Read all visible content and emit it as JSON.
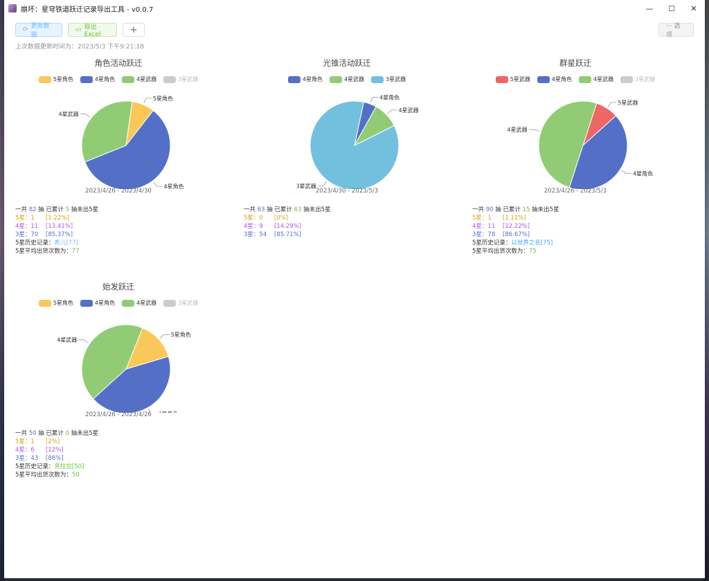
{
  "window": {
    "title": "崩坏：星穹铁道跃迁记录导出工具 - v0.0.7",
    "buttons": [
      "—",
      "☐",
      "✕"
    ]
  },
  "toolbar": {
    "refresh_label": "更新数据",
    "excel_label": "导出Excel",
    "plus_label": "+",
    "options_label": "··· 选项",
    "last_update": "上次数据更新时间为：2023/5/3 下午9:21:18"
  },
  "colors": {
    "star5_char": "#fac858",
    "star4_char": "#5470c6",
    "star4_weapon": "#91cc75",
    "star3_weapon": "#73c0de",
    "star5_weapon": "#ee6666",
    "disabled": "#cccccc"
  },
  "panels": [
    {
      "title": "角色活动跃迁",
      "legend": [
        {
          "label": "5星角色",
          "color": "#fac858",
          "off": false
        },
        {
          "label": "4星角色",
          "color": "#5470c6",
          "off": false
        },
        {
          "label": "4星武器",
          "color": "#91cc75",
          "off": false
        },
        {
          "label": "3星武器",
          "color": "#cccccc",
          "off": true
        }
      ],
      "slices": [
        {
          "label": "5星角色",
          "value": 1.22,
          "color": "#fac858"
        },
        {
          "label": "4星角色",
          "value": 8.54,
          "color": "#5470c6"
        },
        {
          "label": "4星武器",
          "value": 4.88,
          "color": "#91cc75"
        }
      ],
      "range_start": "2023/4/26",
      "range_sep": "-",
      "range_end": "2023/4/30",
      "summary": {
        "pre": "一共",
        "total": "82",
        "mid1": "抽 已累计",
        "pity": "5",
        "post": "抽未出5星"
      },
      "rows": [
        {
          "label": "5星：1",
          "pct": "[1.22%]"
        },
        {
          "label": "4星：11",
          "pct": "[13.41%]"
        },
        {
          "label": "3星：70",
          "pct": "[85.37%]"
        }
      ],
      "history_label": "5星历史记录：",
      "history_value": "希儿[77]",
      "avg_label": "5星平均出货次数为：",
      "avg_value": "77"
    },
    {
      "title": "光锥活动跃迁",
      "legend": [
        {
          "label": "4星角色",
          "color": "#5470c6",
          "off": false
        },
        {
          "label": "4星武器",
          "color": "#91cc75",
          "off": false
        },
        {
          "label": "3星武器",
          "color": "#73c0de",
          "off": false
        }
      ],
      "slices": [
        {
          "label": "4星角色",
          "value": 3,
          "color": "#5470c6"
        },
        {
          "label": "4星武器",
          "value": 6,
          "color": "#91cc75"
        },
        {
          "label": "3星武器",
          "value": 54,
          "color": "#73c0de"
        }
      ],
      "range_start": "2023/4/30",
      "range_sep": "-",
      "range_end": "2023/5/3",
      "summary": {
        "pre": "一共",
        "total": "63",
        "mid1": "抽 已累计",
        "pity": "63",
        "post": "抽未出5星"
      },
      "rows": [
        {
          "label": "5星：0",
          "pct": "[0%]"
        },
        {
          "label": "4星：9",
          "pct": "[14.29%]"
        },
        {
          "label": "3星：54",
          "pct": "[85.71%]"
        }
      ],
      "history_label": "",
      "history_value": "",
      "avg_label": "",
      "avg_value": ""
    },
    {
      "title": "群星跃迁",
      "legend": [
        {
          "label": "5星武器",
          "color": "#ee6666",
          "off": false
        },
        {
          "label": "4星角色",
          "color": "#5470c6",
          "off": false
        },
        {
          "label": "4星武器",
          "color": "#91cc75",
          "off": false
        },
        {
          "label": "3星武器",
          "color": "#cccccc",
          "off": true
        }
      ],
      "slices": [
        {
          "label": "5星武器",
          "value": 1,
          "color": "#ee6666"
        },
        {
          "label": "4星角色",
          "value": 5,
          "color": "#5470c6"
        },
        {
          "label": "4星武器",
          "value": 6,
          "color": "#91cc75"
        }
      ],
      "range_start": "2023/4/26",
      "range_sep": "-",
      "range_end": "2023/5/3",
      "summary": {
        "pre": "一共",
        "total": "90",
        "mid1": "抽 已累计",
        "pity": "15",
        "post": "抽未出5星"
      },
      "rows": [
        {
          "label": "5星：1",
          "pct": "[1.11%]"
        },
        {
          "label": "4星：11",
          "pct": "[12.22%]"
        },
        {
          "label": "3星：78",
          "pct": "[86.67%]"
        }
      ],
      "history_label": "5星历史记录：",
      "history_value": "以世界之名[75]",
      "avg_label": "5星平均出货次数为：",
      "avg_value": "75"
    },
    {
      "title": "始发跃迁",
      "legend": [
        {
          "label": "5星角色",
          "color": "#fac858",
          "off": false
        },
        {
          "label": "4星角色",
          "color": "#5470c6",
          "off": false
        },
        {
          "label": "4星武器",
          "color": "#91cc75",
          "off": false
        },
        {
          "label": "3星武器",
          "color": "#cccccc",
          "off": true
        }
      ],
      "slices": [
        {
          "label": "5星角色",
          "value": 1,
          "color": "#fac858"
        },
        {
          "label": "4星角色",
          "value": 3,
          "color": "#5470c6"
        },
        {
          "label": "4星武器",
          "value": 3,
          "color": "#91cc75"
        }
      ],
      "range_start": "2023/4/26",
      "range_sep": "-",
      "range_end": "2023/4/26",
      "summary": {
        "pre": "一共",
        "total": "50",
        "mid1": "抽 已累计",
        "pity": "0",
        "post": "抽未出5星"
      },
      "rows": [
        {
          "label": "5星：1",
          "pct": "[2%]"
        },
        {
          "label": "4星：6",
          "pct": "[12%]"
        },
        {
          "label": "3星：43",
          "pct": "[86%]"
        }
      ],
      "history_label": "5星历史记录：",
      "history_value": "克拉拉[50]",
      "avg_label": "5星平均出货次数为：",
      "avg_value": "50"
    }
  ],
  "chart_data": [
    {
      "type": "pie",
      "title": "角色活动跃迁",
      "categories": [
        "5星角色",
        "4星角色",
        "4星武器"
      ],
      "values": [
        1,
        7,
        4
      ]
    },
    {
      "type": "pie",
      "title": "光锥活动跃迁",
      "categories": [
        "4星角色",
        "4星武器",
        "3星武器"
      ],
      "values": [
        3,
        6,
        54
      ]
    },
    {
      "type": "pie",
      "title": "群星跃迁",
      "categories": [
        "5星武器",
        "4星角色",
        "4星武器"
      ],
      "values": [
        1,
        5,
        6
      ]
    },
    {
      "type": "pie",
      "title": "始发跃迁",
      "categories": [
        "5星角色",
        "4星角色",
        "4星武器"
      ],
      "values": [
        1,
        3,
        3
      ]
    }
  ]
}
